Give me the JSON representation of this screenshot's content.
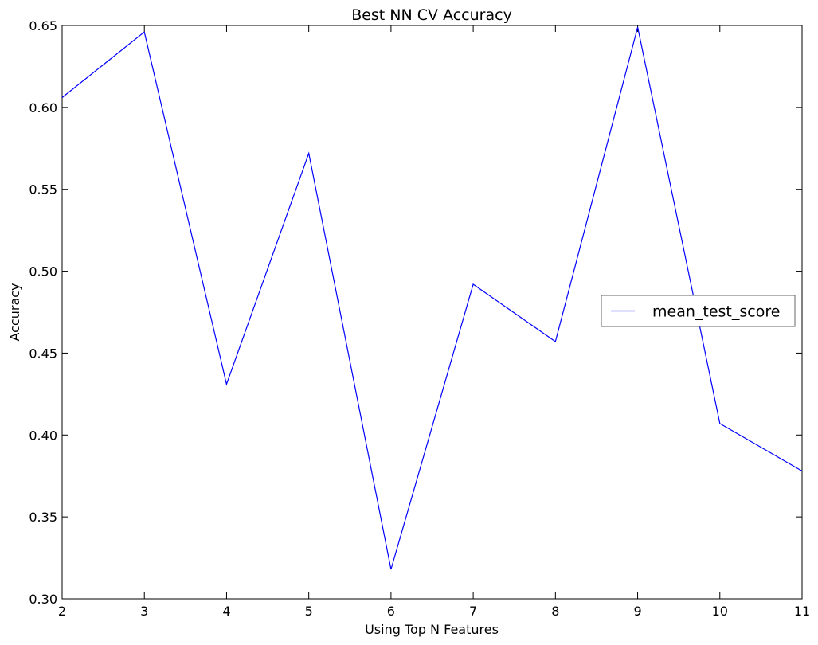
{
  "chart_data": {
    "type": "line",
    "title": "Best NN CV Accuracy",
    "xlabel": "Using Top N Features",
    "ylabel": "Accuracy",
    "xlim": [
      2,
      11
    ],
    "ylim": [
      0.3,
      0.65
    ],
    "x_ticks": [
      2,
      3,
      4,
      5,
      6,
      7,
      8,
      9,
      10,
      11
    ],
    "x_tick_labels": [
      "2",
      "3",
      "4",
      "5",
      "6",
      "7",
      "8",
      "9",
      "10",
      "11"
    ],
    "y_ticks": [
      0.3,
      0.35,
      0.4,
      0.45,
      0.5,
      0.55,
      0.6,
      0.65
    ],
    "y_tick_labels": [
      "0.30",
      "0.35",
      "0.40",
      "0.45",
      "0.50",
      "0.55",
      "0.60",
      "0.65"
    ],
    "grid": false,
    "legend_position": "center-right",
    "series": [
      {
        "name": "mean_test_score",
        "color": "#0000ff",
        "x": [
          2,
          3,
          4,
          5,
          6,
          7,
          8,
          9,
          10,
          11
        ],
        "values": [
          0.606,
          0.646,
          0.431,
          0.572,
          0.318,
          0.492,
          0.457,
          0.649,
          0.407,
          0.378
        ]
      }
    ]
  }
}
